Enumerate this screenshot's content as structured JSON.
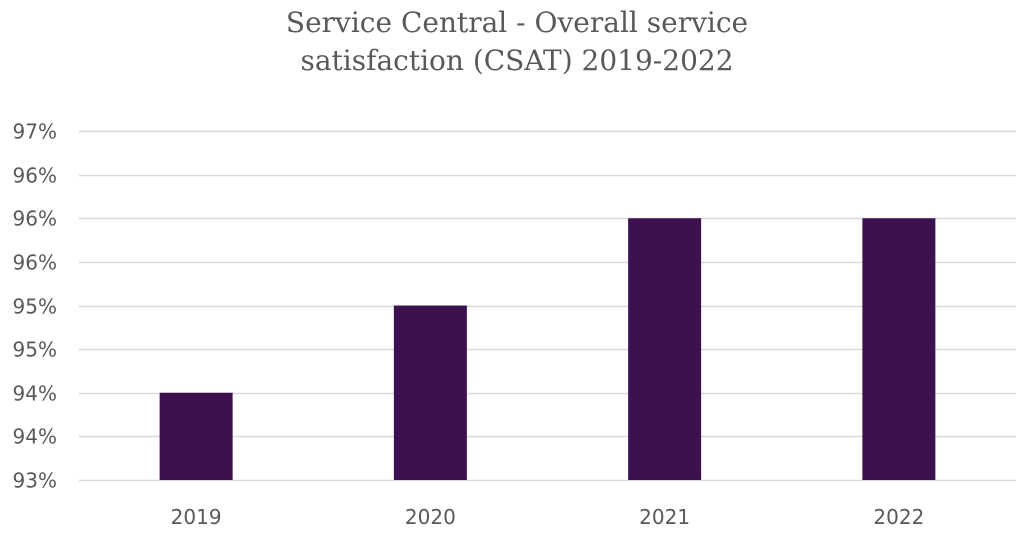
{
  "chart_data": {
    "type": "bar",
    "title": "Service Central - Overall service\nsatisfaction (CSAT) 2019-2022",
    "categories": [
      "2019",
      "2020",
      "2021",
      "2022"
    ],
    "values": [
      94,
      95,
      96,
      96
    ],
    "ylim": [
      93,
      97
    ],
    "y_ticks": [
      93,
      93.5,
      94,
      94.5,
      95,
      95.5,
      96,
      96.5,
      97
    ],
    "y_tick_labels": [
      "93%",
      "94%",
      "94%",
      "95%",
      "95%",
      "96%",
      "96%",
      "96%",
      "97%"
    ],
    "grid": true,
    "legend": "none",
    "bar_color": "#3d1150",
    "grid_color": "#d9d9d9"
  }
}
